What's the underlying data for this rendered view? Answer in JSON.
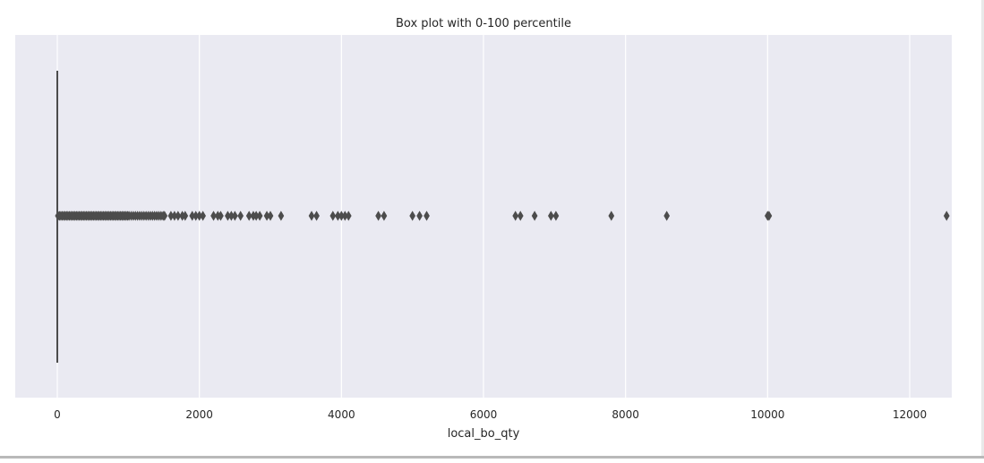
{
  "chart_data": {
    "type": "box",
    "title": "Box plot with 0-100 percentile",
    "xlabel": "local_bo_qty",
    "ylabel": "",
    "xlim": [
      -400,
      13100
    ],
    "xticks": [
      0,
      2000,
      4000,
      6000,
      8000,
      10000,
      12000
    ],
    "grid": true,
    "orientation": "horizontal",
    "box": {
      "min": 0,
      "q1": 0,
      "median": 0,
      "q3": 0,
      "whisker_low": 0,
      "whisker_high": 0
    },
    "outliers": [
      10,
      30,
      50,
      70,
      90,
      110,
      130,
      150,
      170,
      190,
      210,
      230,
      250,
      270,
      290,
      310,
      330,
      350,
      370,
      390,
      410,
      430,
      450,
      470,
      490,
      510,
      530,
      550,
      570,
      590,
      610,
      630,
      650,
      670,
      690,
      710,
      730,
      750,
      770,
      790,
      810,
      830,
      850,
      870,
      890,
      910,
      930,
      950,
      970,
      990,
      1010,
      1040,
      1070,
      1100,
      1130,
      1160,
      1190,
      1220,
      1250,
      1280,
      1310,
      1340,
      1370,
      1400,
      1430,
      1460,
      1490,
      1510,
      1600,
      1650,
      1700,
      1760,
      1800,
      1900,
      1950,
      2000,
      2050,
      2200,
      2260,
      2300,
      2400,
      2450,
      2500,
      2580,
      2700,
      2760,
      2800,
      2850,
      2950,
      3000,
      3150,
      3580,
      3650,
      3880,
      3950,
      4000,
      4050,
      4100,
      4520,
      4600,
      5000,
      5100,
      5200,
      6450,
      6520,
      6720,
      6950,
      7020,
      7800,
      8580,
      10000,
      10020,
      12520
    ],
    "colors": {
      "background": "#eaeaf2",
      "grid": "#ffffff",
      "box": "#4c4c4c",
      "text": "#262626"
    }
  }
}
